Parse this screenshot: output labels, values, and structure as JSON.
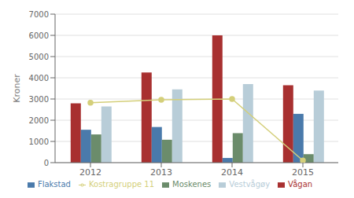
{
  "chart_data": {
    "type": "bar",
    "categories": [
      "2012",
      "2013",
      "2014",
      "2015"
    ],
    "series": [
      {
        "name": "Vågan",
        "type": "bar",
        "color": "#a83030",
        "values": [
          2800,
          4250,
          6000,
          3650
        ]
      },
      {
        "name": "Flakstad",
        "type": "bar",
        "color": "#4a7aab",
        "values": [
          1550,
          1680,
          220,
          2300
        ]
      },
      {
        "name": "Moskenes",
        "type": "bar",
        "color": "#6b8c6b",
        "values": [
          1330,
          1080,
          1390,
          400
        ]
      },
      {
        "name": "Vestvågøy",
        "type": "bar",
        "color": "#b8cdd8",
        "values": [
          2650,
          3450,
          3700,
          3400
        ]
      },
      {
        "name": "Kostragruppe 11",
        "type": "line",
        "color": "#d4cf7a",
        "marker": "circle",
        "line_style": "solid",
        "values": [
          2820,
          2960,
          3000,
          100
        ]
      }
    ],
    "ylabel": "Kroner",
    "ylim": [
      0,
      7000
    ],
    "yticks": [
      0,
      1000,
      2000,
      3000,
      4000,
      5000,
      6000,
      7000
    ],
    "grid": true,
    "legend": "bottom"
  }
}
